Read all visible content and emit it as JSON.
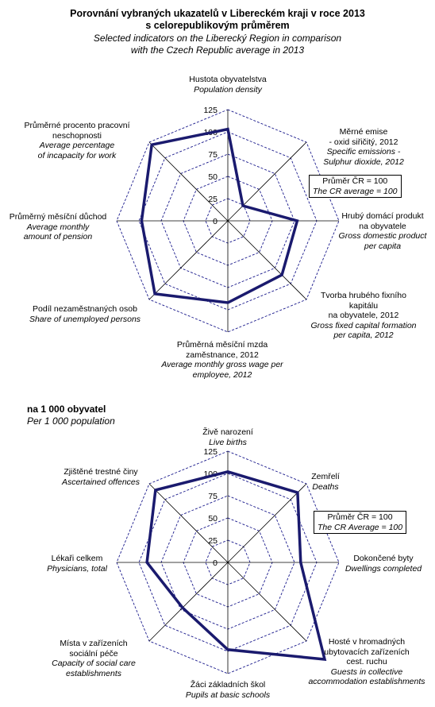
{
  "title": {
    "cz_line1": "Porovnání vybraných ukazatelů v Libereckém kraji v roce 2013",
    "cz_line2": "s celorepublikovým průměrem",
    "en_line1": "Selected indicators on the Liberecký Region in comparison",
    "en_line2": "with the Czech Republic average in 2013"
  },
  "chart2_header": {
    "cz": "na 1 000 obyvatel",
    "en": "Per 1 000 population"
  },
  "chart_data": [
    {
      "type": "radar",
      "rlim": [
        0,
        125
      ],
      "ticks": [
        "0",
        "25",
        "50",
        "75",
        "100",
        "125"
      ],
      "grid": true,
      "reference_box": {
        "cz": "Průměr ČR = 100",
        "en": "The CR average = 100"
      },
      "axes": [
        {
          "cz": [
            "Hustota obyvatelstva"
          ],
          "en": [
            "Population density"
          ]
        },
        {
          "cz": [
            "Měrné emise",
            "- oxid siřičitý, 2012"
          ],
          "en": [
            "Specific emissions -",
            "Sulphur dioxide, 2012"
          ]
        },
        {
          "cz": [
            "Hrubý domácí produkt",
            "na obyvatele"
          ],
          "en": [
            "Gross domestic product",
            "per capita"
          ]
        },
        {
          "cz": [
            "Tvorba hrubého fixního",
            "kapitálu",
            "na obyvatele, 2012"
          ],
          "en": [
            "Gross fixed capital formation",
            "per capita, 2012"
          ]
        },
        {
          "cz": [
            "Průměrná měsíční mzda",
            "zaměstnance, 2012"
          ],
          "en": [
            "Average monthly gross wage per",
            "employee, 2012"
          ]
        },
        {
          "cz": [
            "Podíl nezaměstnaných osob"
          ],
          "en": [
            "Share of unemployed persons"
          ]
        },
        {
          "cz": [
            "Průměrný měsíční důchod"
          ],
          "en": [
            "Average monthly",
            "amount of pension"
          ]
        },
        {
          "cz": [
            "Průměrné procento pracovní",
            "neschopnosti"
          ],
          "en": [
            "Average percentage",
            "of incapacity for work"
          ]
        }
      ],
      "values": [
        103,
        24,
        78,
        86,
        92,
        116,
        97,
        121
      ],
      "series_color": "#1a1a6e",
      "grid_color": "#1a1a8c"
    },
    {
      "type": "radar",
      "rlim": [
        0,
        125
      ],
      "ticks": [
        "0",
        "25",
        "50",
        "75",
        "100",
        "125"
      ],
      "grid": true,
      "reference_box": {
        "cz": "Průměr ČR = 100",
        "en": "The CR Average = 100"
      },
      "axes": [
        {
          "cz": [
            "Živě narození"
          ],
          "en": [
            "Live births"
          ]
        },
        {
          "cz": [
            "Zemřelí"
          ],
          "en": [
            "Deaths"
          ]
        },
        {
          "cz": [
            "Dokončené byty"
          ],
          "en": [
            "Dwellings completed"
          ]
        },
        {
          "cz": [
            "Hosté v hromadných",
            "ubytovacích zařízeních",
            "cest. ruchu"
          ],
          "en": [
            "Guests in collective",
            "accommodation establishments"
          ]
        },
        {
          "cz": [
            "Žáci základních škol"
          ],
          "en": [
            "Pupils at basic schools"
          ]
        },
        {
          "cz": [
            "Místa v zařízeních",
            "sociální péče"
          ],
          "en": [
            "Capacity of social care",
            "establishments"
          ]
        },
        {
          "cz": [
            "Lékaři celkem"
          ],
          "en": [
            "Physicians, total"
          ]
        },
        {
          "cz": [
            "Zjištěné trestné činy"
          ],
          "en": [
            "Ascertained offences"
          ]
        }
      ],
      "values": [
        102,
        111,
        82,
        154,
        98,
        72,
        91,
        115
      ],
      "series_color": "#1a1a6e",
      "grid_color": "#1a1a8c"
    }
  ]
}
